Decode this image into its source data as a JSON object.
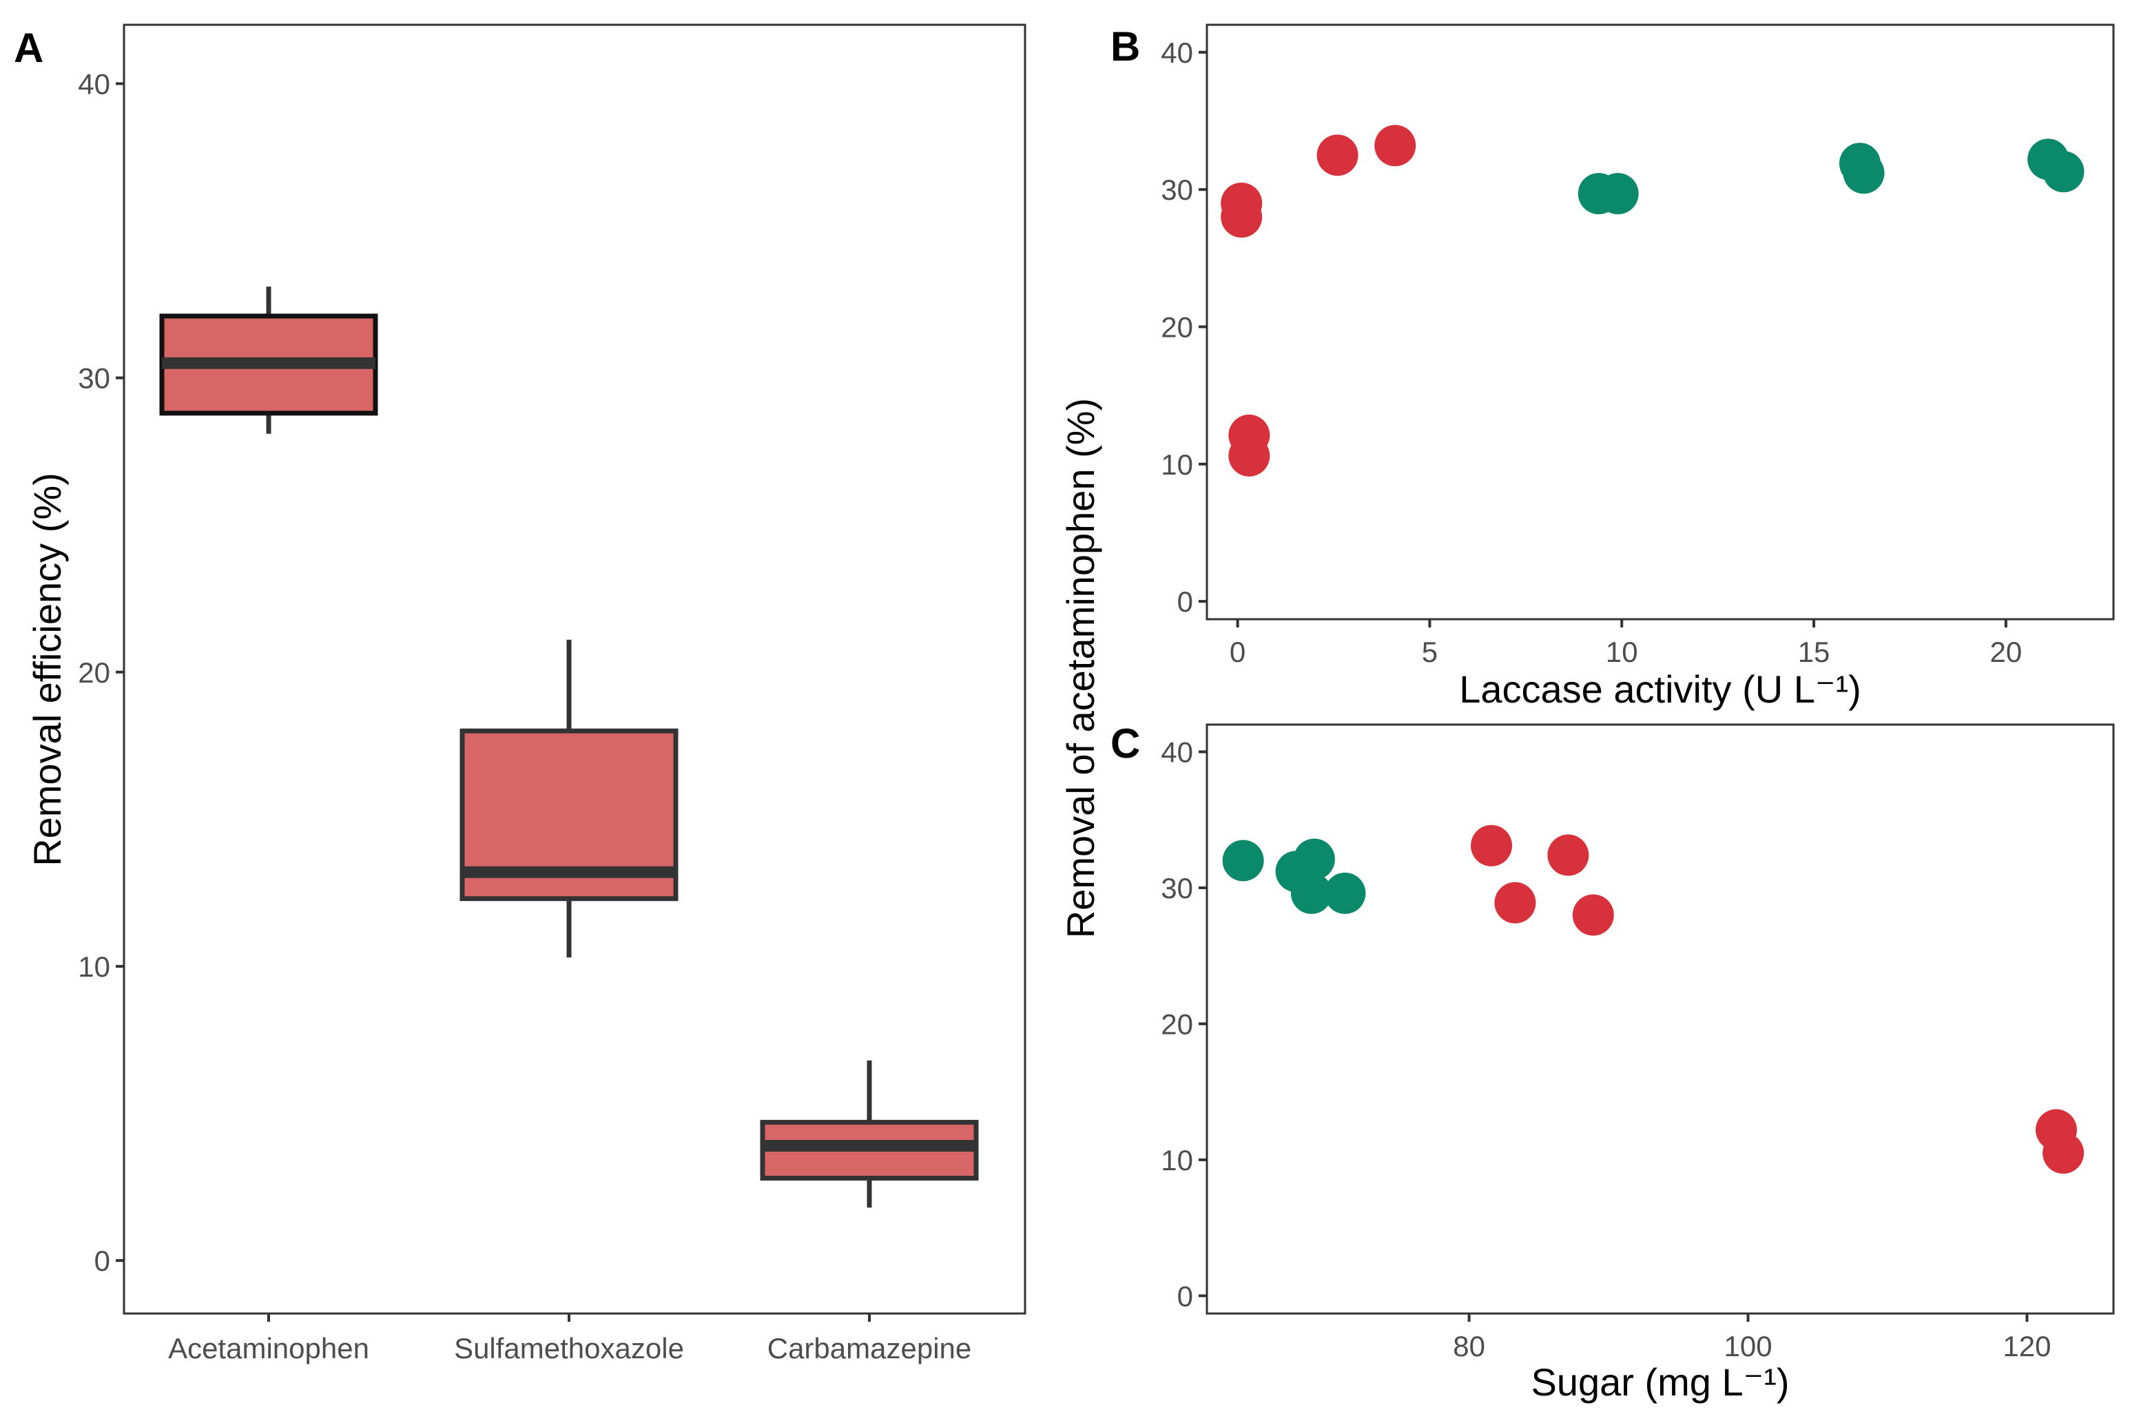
{
  "colors": {
    "box_fill": "#d96666",
    "box_line": "#333333",
    "red_points": "#d7313c",
    "green_points": "#0a8a6a",
    "axis_text": "#4d4d4d"
  },
  "chart_data": [
    {
      "panel": "A",
      "type": "box",
      "title": "",
      "xlabel": "",
      "ylabel": "Removal efficiency (%)",
      "ylim": [
        -1.8,
        42
      ],
      "yticks": [
        0,
        10,
        20,
        30,
        40
      ],
      "categories": [
        "Acetaminophen",
        "Sulfamethoxazole",
        "Carbamazepine"
      ],
      "boxes": [
        {
          "category": "Acetaminophen",
          "min": 28.1,
          "q1": 28.8,
          "median": 30.5,
          "q3": 32.1,
          "max": 33.1
        },
        {
          "category": "Sulfamethoxazole",
          "min": 10.3,
          "q1": 12.3,
          "median": 13.2,
          "q3": 18.0,
          "max": 21.1
        },
        {
          "category": "Carbamazepine",
          "min": 1.8,
          "q1": 2.8,
          "median": 3.9,
          "q3": 4.7,
          "max": 6.8
        }
      ]
    },
    {
      "panel": "B",
      "type": "scatter",
      "xlabel": "Laccase activity (U L⁻¹)",
      "ylabel": "Removal of acetaminophen (%)",
      "xlim": [
        -0.8,
        22.8
      ],
      "ylim": [
        -1.3,
        42
      ],
      "xticks": [
        0,
        5,
        10,
        15,
        20
      ],
      "yticks": [
        0,
        10,
        20,
        30,
        40
      ],
      "series": [
        {
          "name": "red",
          "points": [
            [
              0.1,
              29.0
            ],
            [
              0.1,
              28.0
            ],
            [
              0.3,
              12.1
            ],
            [
              0.3,
              10.6
            ],
            [
              2.6,
              32.5
            ],
            [
              4.1,
              33.2
            ]
          ]
        },
        {
          "name": "green",
          "points": [
            [
              9.4,
              29.7
            ],
            [
              9.9,
              29.7
            ],
            [
              16.2,
              31.9
            ],
            [
              16.3,
              31.2
            ],
            [
              21.1,
              32.2
            ],
            [
              21.5,
              31.3
            ]
          ]
        }
      ]
    },
    {
      "panel": "C",
      "type": "scatter",
      "xlabel": "Sugar (mg L⁻¹)",
      "ylabel": "",
      "xlim": [
        61.2,
        126.2
      ],
      "ylim": [
        -1.3,
        42
      ],
      "xticks": [
        80,
        100,
        120
      ],
      "yticks": [
        0,
        10,
        20,
        30,
        40
      ],
      "series": [
        {
          "name": "green",
          "points": [
            [
              63.8,
              32.0
            ],
            [
              67.6,
              31.2
            ],
            [
              68.9,
              32.1
            ],
            [
              68.7,
              29.6
            ],
            [
              71.1,
              29.6
            ]
          ]
        },
        {
          "name": "red",
          "points": [
            [
              81.6,
              33.1
            ],
            [
              83.3,
              28.9
            ],
            [
              87.1,
              32.4
            ],
            [
              88.9,
              28.0
            ],
            [
              122.1,
              12.2
            ],
            [
              122.6,
              10.5
            ]
          ]
        }
      ]
    }
  ]
}
